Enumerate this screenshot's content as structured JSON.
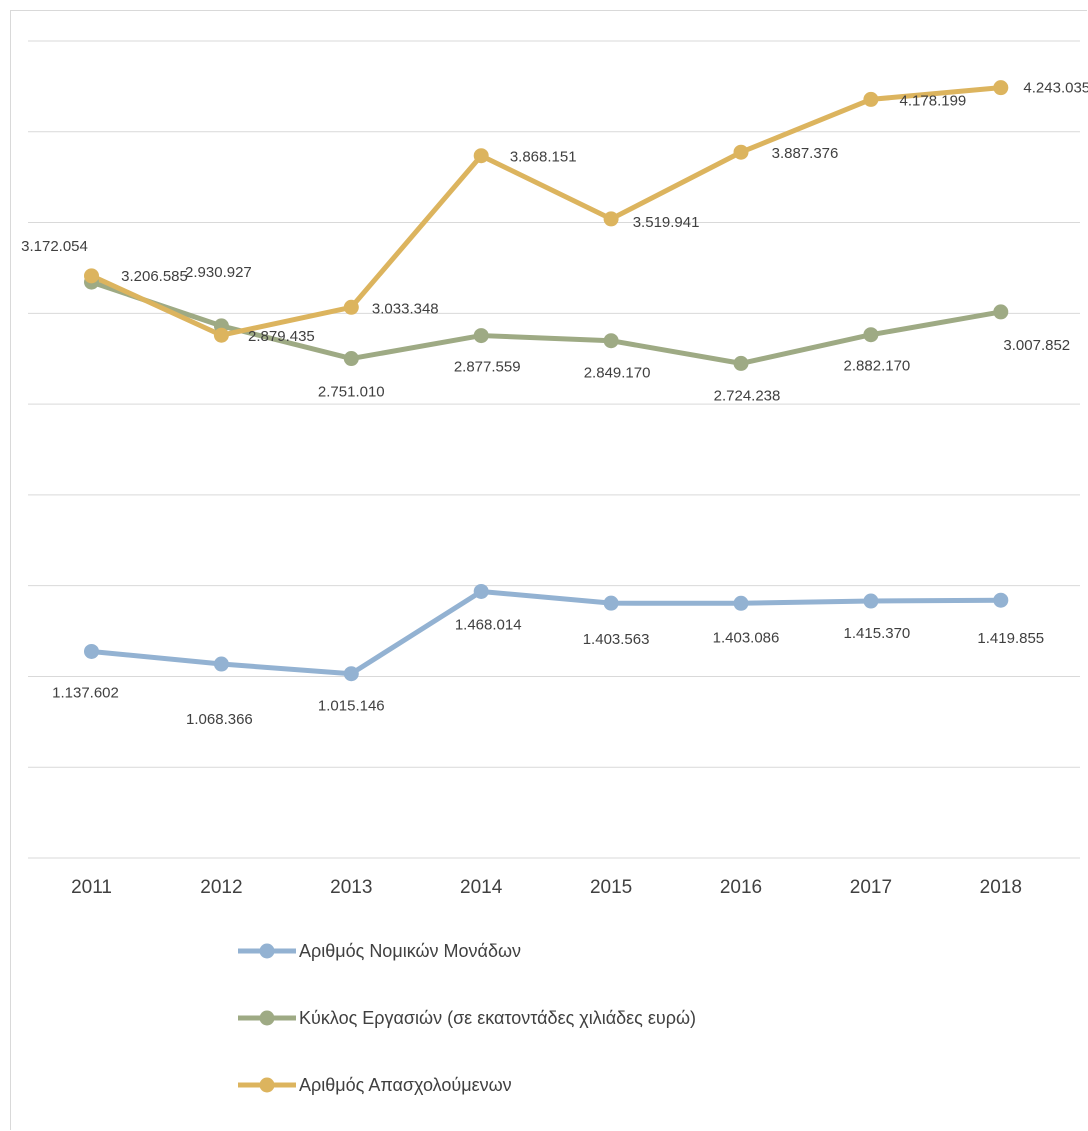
{
  "chart_data": {
    "type": "line",
    "title": "",
    "xlabel": "",
    "ylabel": "",
    "categories": [
      "2011",
      "2012",
      "2013",
      "2014",
      "2015",
      "2016",
      "2017",
      "2018"
    ],
    "grid": true,
    "legend_position": "bottom",
    "series": [
      {
        "name": "Αριθμός Νομικών Μονάδων",
        "color": "#93b2d2",
        "values": [
          1137602,
          1068366,
          1015146,
          1468014,
          1403563,
          1403086,
          1415370,
          1419855
        ],
        "labels": [
          "1.137.602",
          "1.068.366",
          "1.015.146",
          "1.468.014",
          "1.403.563",
          "1.403.086",
          "1.415.370",
          "1.419.855"
        ]
      },
      {
        "name": "Κύκλος Εργασιών (σε εκατοντάδες χιλιάδες ευρώ)",
        "color": "#9eaa84",
        "values": [
          3172054,
          2930927,
          2751010,
          2877559,
          2849170,
          2724238,
          2882170,
          3007852
        ],
        "labels": [
          "3.172.054",
          "2.930.927",
          "2.751.010",
          "2.877.559",
          "2.849.170",
          "2.724.238",
          "2.882.170",
          "3.007.852"
        ]
      },
      {
        "name": "Αριθμός Απασχολούμενων",
        "color": "#dcb45e",
        "values": [
          3206585,
          2879435,
          3033348,
          3868151,
          3519941,
          3887376,
          4178199,
          4243035
        ],
        "labels": [
          "3.206.585",
          "2.879.435",
          "3.033.348",
          "3.868.151",
          "3.519.941",
          "3.887.376",
          "4.178.199",
          "4.243.035"
        ]
      }
    ],
    "ylim": [
      0,
      4500000
    ]
  }
}
